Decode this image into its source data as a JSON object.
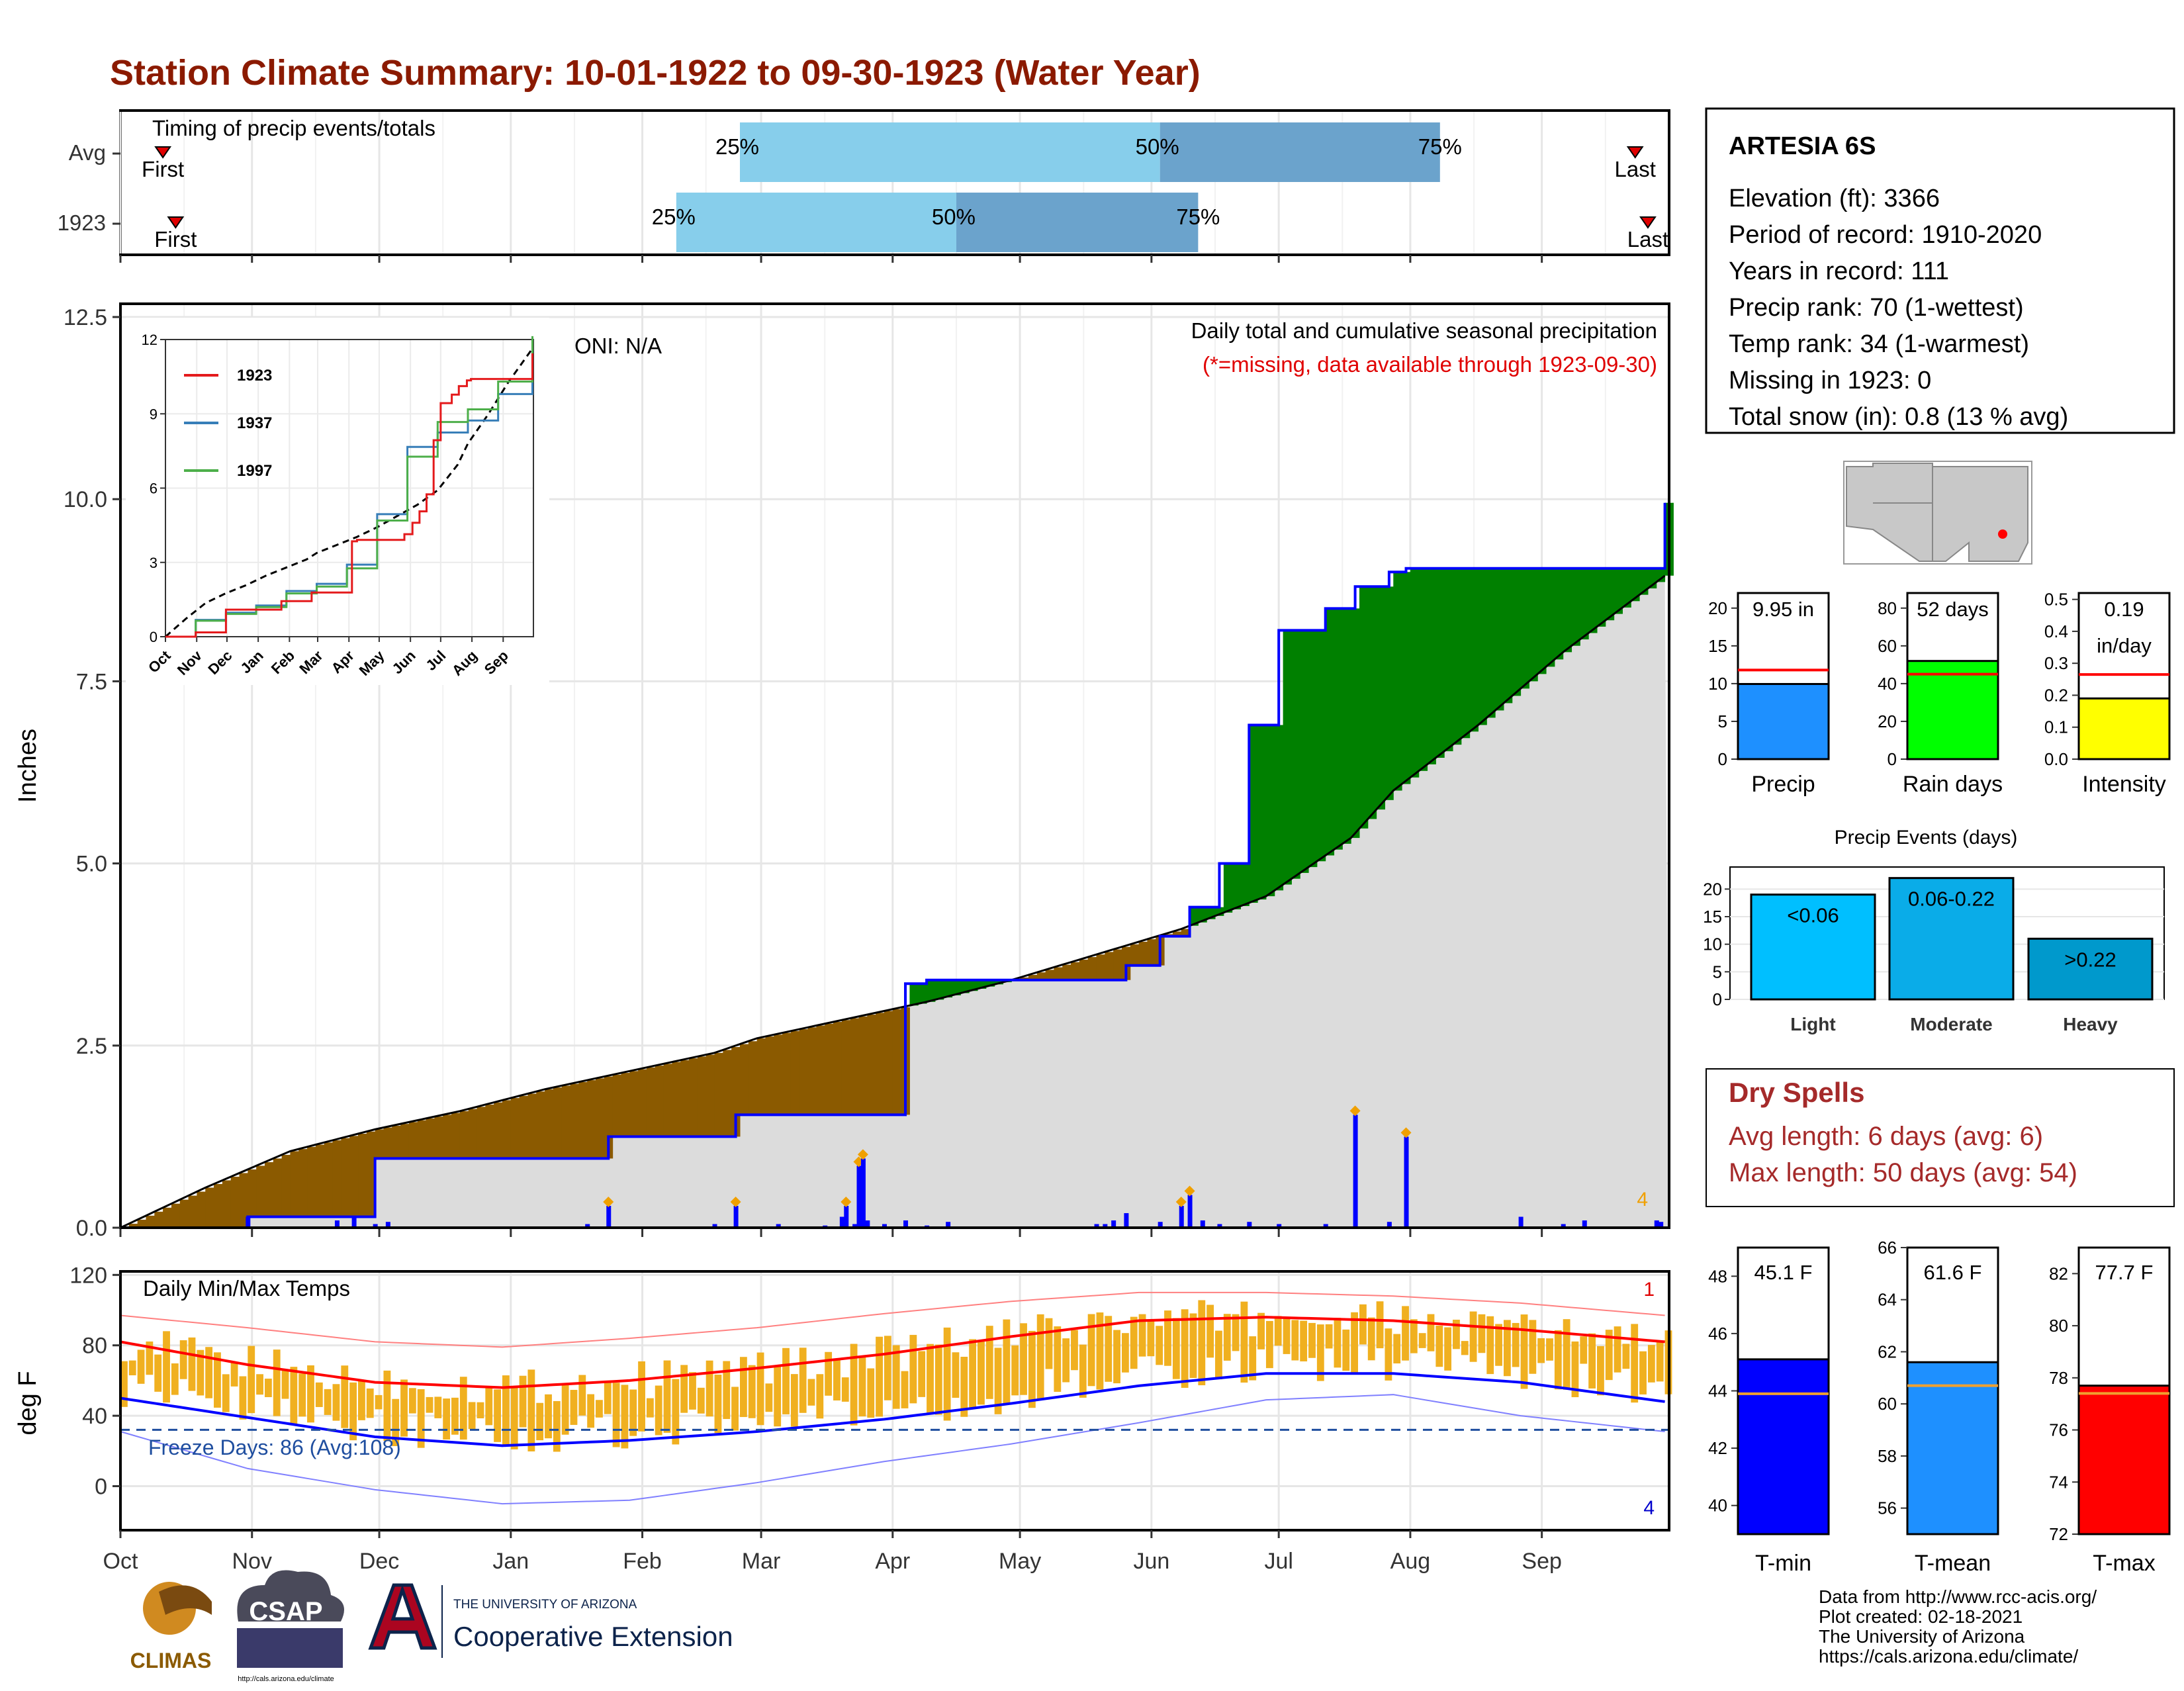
{
  "title": "Station Climate Summary: 10-01-1922 to 09-30-1923 (Water Year)",
  "colors": {
    "title": "#8B1A00",
    "dry": "#8B5A00",
    "wet": "#008000",
    "precip_bar": "#0000FF",
    "gray_fill": "#DCDCDC",
    "t_max": "#FF0000",
    "t_min": "#0000FF",
    "temp_bar": "#F0B020",
    "freeze": "#1F4E9F"
  },
  "timing": {
    "label": "Timing of precip events/totals",
    "rows": [
      {
        "name": "Avg",
        "first": "First",
        "last": "Last",
        "p25": "25%",
        "p50": "50%",
        "p75": "75%",
        "first_doy": 10,
        "last_doy": 357,
        "q25_doy": 146,
        "q50_doy": 245,
        "q75_doy": 311
      },
      {
        "name": "1923",
        "first": "First",
        "last": "Last",
        "p25": "25%",
        "p50": "50%",
        "p75": "75%",
        "first_doy": 13,
        "last_doy": 360,
        "q25_doy": 131,
        "q50_doy": 197,
        "q75_doy": 254
      }
    ]
  },
  "precip_panel": {
    "ylabel": "Inches",
    "yticks": [
      "0.0",
      "2.5",
      "5.0",
      "7.5",
      "10.0",
      "12.5"
    ],
    "ylim": [
      0,
      12.5
    ],
    "header": "Daily total and cumulative seasonal precipitation",
    "note": "(*=missing, data available through 1923-09-30)",
    "oni": "ONI: N/A",
    "corner_num": "4"
  },
  "inset": {
    "yticks": [
      "0",
      "3",
      "6",
      "9",
      "12"
    ],
    "months": [
      "Oct",
      "Nov",
      "Dec",
      "Jan",
      "Feb",
      "Mar",
      "Apr",
      "May",
      "Jun",
      "Jul",
      "Aug",
      "Sep"
    ],
    "legend": [
      {
        "name": "1923",
        "color": "#E41A1C"
      },
      {
        "name": "1937",
        "color": "#377EB8"
      },
      {
        "name": "1997",
        "color": "#4DAF4A"
      }
    ]
  },
  "temp_panel": {
    "label": "Daily Min/Max Temps",
    "ylabel": "deg F",
    "yticks": [
      "0",
      "40",
      "80",
      "120"
    ],
    "ylim": [
      -25,
      122
    ],
    "freeze_label": "Freeze Days: 86 (Avg:108)",
    "corner_top": "1",
    "corner_bottom": "4",
    "months": [
      "Oct",
      "Nov",
      "Dec",
      "Jan",
      "Feb",
      "Mar",
      "Apr",
      "May",
      "Jun",
      "Jul",
      "Aug",
      "Sep"
    ]
  },
  "station": {
    "name": "ARTESIA 6S",
    "lines": [
      "Elevation (ft): 3366",
      "Period of record: 1910-2020",
      "Years in record: 111",
      "Precip rank: 70 (1-wettest)",
      "Temp rank: 34 (1-warmest)",
      "Missing in 1923: 0",
      "Total snow (in): 0.8 (13 % avg)"
    ]
  },
  "mini_bars": [
    {
      "label": "Precip",
      "value_text": "9.95 in",
      "value": 9.95,
      "avg": 11.8,
      "ymax": 22,
      "ticks": [
        "0",
        "5",
        "10",
        "15",
        "20"
      ],
      "tickvals": [
        0,
        5,
        10,
        15,
        20
      ],
      "color": "#1E90FF"
    },
    {
      "label": "Rain days",
      "value_text": "52 days",
      "value": 52,
      "avg": 45,
      "ymax": 88,
      "ticks": [
        "0",
        "20",
        "40",
        "60",
        "80"
      ],
      "tickvals": [
        0,
        20,
        40,
        60,
        80
      ],
      "color": "#00FF00"
    },
    {
      "label": "Intensity",
      "value_text": "0.19",
      "value_text2": "in/day",
      "value": 0.19,
      "avg": 0.265,
      "ymax": 0.52,
      "ticks": [
        "0.0",
        "0.1",
        "0.2",
        "0.3",
        "0.4",
        "0.5"
      ],
      "tickvals": [
        0,
        0.1,
        0.2,
        0.3,
        0.4,
        0.5
      ],
      "color": "#FFFF00"
    }
  ],
  "events": {
    "title": "Precip Events (days)",
    "ticks": [
      "0",
      "5",
      "10",
      "15",
      "20"
    ],
    "bars": [
      {
        "label": "Light",
        "value_text": "<0.06",
        "value": 19,
        "color": "#00BFFF"
      },
      {
        "label": "Moderate",
        "value_text": "0.06-0.22",
        "value": 22,
        "color": "#0AACE8"
      },
      {
        "label": "Heavy",
        "value_text": ">0.22",
        "value": 11,
        "color": "#0099CC"
      }
    ]
  },
  "dry_spells": {
    "title": "Dry Spells",
    "avg_line": "Avg length: 6 days (avg: 6)",
    "max_line": "Max length: 50 days (avg: 54)"
  },
  "temp_bars": [
    {
      "label": "T-min",
      "value_text": "45.1 F",
      "value": 45.1,
      "avg": 43.9,
      "ymin": 39,
      "ymax": 49,
      "ticks": [
        "40",
        "42",
        "44",
        "46",
        "48"
      ],
      "tickvals": [
        40,
        42,
        44,
        46,
        48
      ],
      "color": "#0000FF"
    },
    {
      "label": "T-mean",
      "value_text": "61.6 F",
      "value": 61.6,
      "avg": 60.7,
      "ymin": 55,
      "ymax": 66,
      "ticks": [
        "56",
        "58",
        "60",
        "62",
        "64",
        "66"
      ],
      "tickvals": [
        56,
        58,
        60,
        62,
        64,
        66
      ],
      "color": "#1E90FF"
    },
    {
      "label": "T-max",
      "value_text": "77.7 F",
      "value": 77.7,
      "avg": 77.4,
      "ymin": 72,
      "ymax": 83,
      "ticks": [
        "72",
        "74",
        "76",
        "78",
        "80",
        "82"
      ],
      "tickvals": [
        72,
        74,
        76,
        78,
        80,
        82
      ],
      "color": "#FF0000"
    }
  ],
  "footer": {
    "credits": [
      "Data from http://www.rcc-acis.org/",
      "Plot created: 02-18-2021",
      "The University of Arizona",
      "https://cals.arizona.edu/climate/"
    ],
    "logo1": "CLIMAS",
    "logo2": "CSAP",
    "logo2_url": "http://cals.arizona.edu/climate",
    "logo3_small": "THE UNIVERSITY OF ARIZONA",
    "logo3_big": "Cooperative Extension"
  },
  "chart_data": [
    {
      "type": "area",
      "title": "Daily total and cumulative seasonal precipitation",
      "ylabel": "Inches",
      "ylim": [
        0,
        12.5
      ],
      "x_months": [
        "Oct",
        "Nov",
        "Dec",
        "Jan",
        "Feb",
        "Mar",
        "Apr",
        "May",
        "Jun",
        "Jul",
        "Aug",
        "Sep"
      ],
      "series": [
        {
          "name": "Avg",
          "x_doy": [
            0,
            20,
            40,
            60,
            80,
            100,
            120,
            140,
            150,
            170,
            190,
            210,
            230,
            250,
            270,
            290,
            300,
            320,
            340,
            364
          ],
          "values": [
            0,
            0.55,
            1.05,
            1.35,
            1.6,
            1.9,
            2.15,
            2.4,
            2.6,
            2.85,
            3.1,
            3.4,
            3.75,
            4.1,
            4.55,
            5.35,
            6.0,
            6.9,
            7.9,
            8.95
          ]
        },
        {
          "name": "1923",
          "x_doy": [
            0,
            30,
            52,
            60,
            110,
            115,
            140,
            145,
            175,
            185,
            190,
            195,
            200,
            234,
            237,
            245,
            252,
            259,
            266,
            273,
            284,
            291,
            299,
            303,
            343,
            364
          ],
          "values": [
            0,
            0.15,
            0.15,
            0.95,
            0.95,
            1.25,
            1.25,
            1.55,
            1.55,
            3.35,
            3.4,
            3.4,
            3.4,
            3.4,
            3.6,
            4.0,
            4.4,
            5.0,
            6.9,
            8.2,
            8.5,
            8.8,
            9.0,
            9.05,
            9.05,
            9.95
          ]
        },
        {
          "name": "1937 (inset)",
          "x_doy": [
            0,
            30,
            60,
            90,
            120,
            150,
            180,
            210,
            240,
            270,
            300,
            330,
            364
          ],
          "values": [
            0,
            0.7,
            1.0,
            1.3,
            1.9,
            2.2,
            3.0,
            5.1,
            7.9,
            8.5,
            9.0,
            10.1,
            11.9
          ]
        }
      ]
    },
    {
      "type": "bar",
      "title": "Daily precipitation (1923)",
      "x_doy": [
        30,
        51,
        55,
        60,
        63,
        110,
        115,
        140,
        145,
        155,
        166,
        170,
        171,
        173,
        174,
        175,
        176,
        180,
        185,
        190,
        195,
        230,
        232,
        234,
        237,
        245,
        250,
        252,
        255,
        259,
        266,
        273,
        284,
        291,
        299,
        303,
        330,
        340,
        345,
        362,
        363
      ],
      "values": [
        0.15,
        0.1,
        0.15,
        0.05,
        0.08,
        0.05,
        0.3,
        0.05,
        0.3,
        0.05,
        0.03,
        0.15,
        0.3,
        0.05,
        0.85,
        0.95,
        0.1,
        0.05,
        0.1,
        0.03,
        0.08,
        0.05,
        0.05,
        0.1,
        0.2,
        0.08,
        0.3,
        0.45,
        0.1,
        0.05,
        0.08,
        0.05,
        0.05,
        1.55,
        0.08,
        1.25,
        0.15,
        0.05,
        0.1,
        0.1,
        0.08
      ]
    },
    {
      "type": "line",
      "title": "Daily Min/Max Temps",
      "ylabel": "deg F",
      "ylim": [
        -25,
        122
      ],
      "x_months": [
        "Oct",
        "Nov",
        "Dec",
        "Jan",
        "Feb",
        "Mar",
        "Apr",
        "May",
        "Jun",
        "Jul",
        "Aug",
        "Sep"
      ],
      "series": [
        {
          "name": "Avg max",
          "x_doy": [
            0,
            30,
            60,
            90,
            120,
            150,
            180,
            210,
            240,
            270,
            300,
            330,
            364
          ],
          "values": [
            82,
            69,
            59,
            56,
            60,
            67,
            75,
            85,
            94,
            96,
            94,
            89,
            82
          ]
        },
        {
          "name": "Avg min",
          "x_doy": [
            0,
            30,
            60,
            90,
            120,
            150,
            180,
            210,
            240,
            270,
            300,
            330,
            364
          ],
          "values": [
            50,
            39,
            28,
            23,
            26,
            31,
            38,
            47,
            57,
            64,
            64,
            59,
            48
          ]
        },
        {
          "name": "Record max",
          "x_doy": [
            0,
            30,
            60,
            90,
            120,
            150,
            180,
            210,
            240,
            270,
            300,
            330,
            364
          ],
          "values": [
            97,
            90,
            82,
            79,
            84,
            90,
            98,
            105,
            110,
            110,
            108,
            104,
            97
          ]
        },
        {
          "name": "Record min",
          "x_doy": [
            0,
            30,
            60,
            90,
            120,
            150,
            180,
            210,
            240,
            270,
            300,
            330,
            364
          ],
          "values": [
            31,
            10,
            -2,
            -10,
            -8,
            2,
            14,
            24,
            36,
            49,
            52,
            40,
            31
          ]
        }
      ]
    },
    {
      "type": "bar",
      "title": "Precip / Rain days / Intensity",
      "categories": [
        "Precip",
        "Rain days",
        "Intensity"
      ],
      "values": [
        9.95,
        52,
        0.19
      ]
    },
    {
      "type": "bar",
      "title": "Precip Events (days)",
      "categories": [
        "Light",
        "Moderate",
        "Heavy"
      ],
      "values": [
        19,
        22,
        11
      ]
    },
    {
      "type": "bar",
      "title": "Temperatures",
      "categories": [
        "T-min",
        "T-mean",
        "T-max"
      ],
      "values": [
        45.1,
        61.6,
        77.7
      ]
    }
  ]
}
